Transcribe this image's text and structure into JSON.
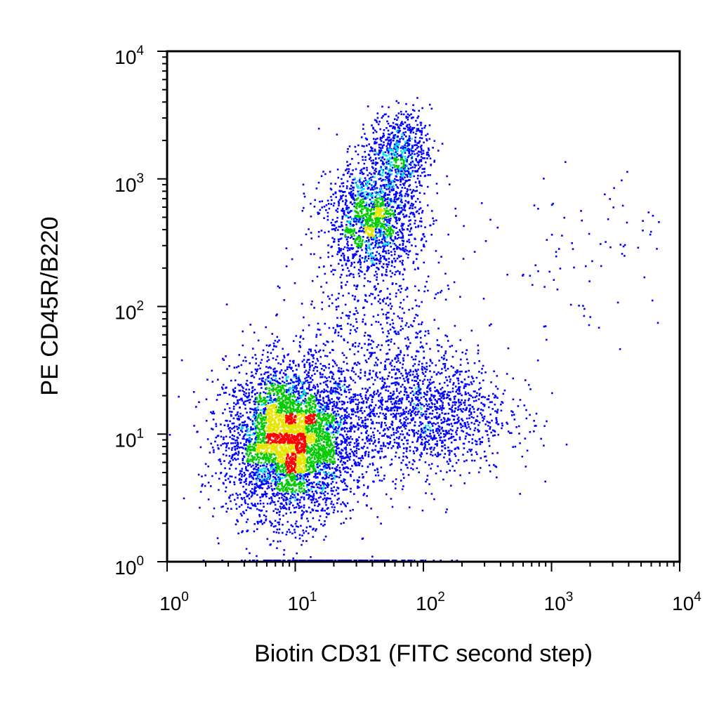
{
  "chart_data": {
    "type": "scatter",
    "subtype": "density-dot-plot",
    "xlabel": "Biotin CD31 (FITC second step)",
    "ylabel": "PE CD45R/B220",
    "x_scale": "log",
    "y_scale": "log",
    "xlim": [
      1,
      10000
    ],
    "ylim": [
      1,
      10000
    ],
    "grid": false,
    "legend": "none",
    "x_ticks": [
      {
        "base": "10",
        "exp": "0",
        "value": 1
      },
      {
        "base": "10",
        "exp": "1",
        "value": 10
      },
      {
        "base": "10",
        "exp": "2",
        "value": 100
      },
      {
        "base": "10",
        "exp": "3",
        "value": 1000
      },
      {
        "base": "10",
        "exp": "4",
        "value": 10000
      }
    ],
    "y_ticks": [
      {
        "base": "10",
        "exp": "0",
        "value": 1
      },
      {
        "base": "10",
        "exp": "1",
        "value": 10
      },
      {
        "base": "10",
        "exp": "2",
        "value": 100
      },
      {
        "base": "10",
        "exp": "3",
        "value": 1000
      },
      {
        "base": "10",
        "exp": "4",
        "value": 10000
      }
    ],
    "density_colors": [
      "#0000ff",
      "#00e5e5",
      "#00cc00",
      "#e5e500",
      "#ff0000"
    ],
    "populations": [
      {
        "center": [
          9,
          9
        ],
        "spread_decades": [
          0.25,
          0.3
        ],
        "relative_count": 0.5
      },
      {
        "center": [
          40,
          500
        ],
        "spread_decades": [
          0.18,
          0.22
        ],
        "relative_count": 0.17
      },
      {
        "center": [
          65,
          1700
        ],
        "spread_decades": [
          0.12,
          0.15
        ],
        "relative_count": 0.07
      },
      {
        "center": [
          90,
          15
        ],
        "spread_decades": [
          0.35,
          0.25
        ],
        "relative_count": 0.18
      },
      {
        "center": [
          40,
          80
        ],
        "spread_decades": [
          0.3,
          0.35
        ],
        "relative_count": 0.05
      },
      {
        "center": [
          2000,
          250
        ],
        "spread_decades": [
          0.4,
          0.3
        ],
        "relative_count": 0.01
      },
      {
        "center": [
          20,
          1
        ],
        "spread_decades": [
          0.4,
          0.0
        ],
        "relative_count": 0.02
      }
    ]
  }
}
